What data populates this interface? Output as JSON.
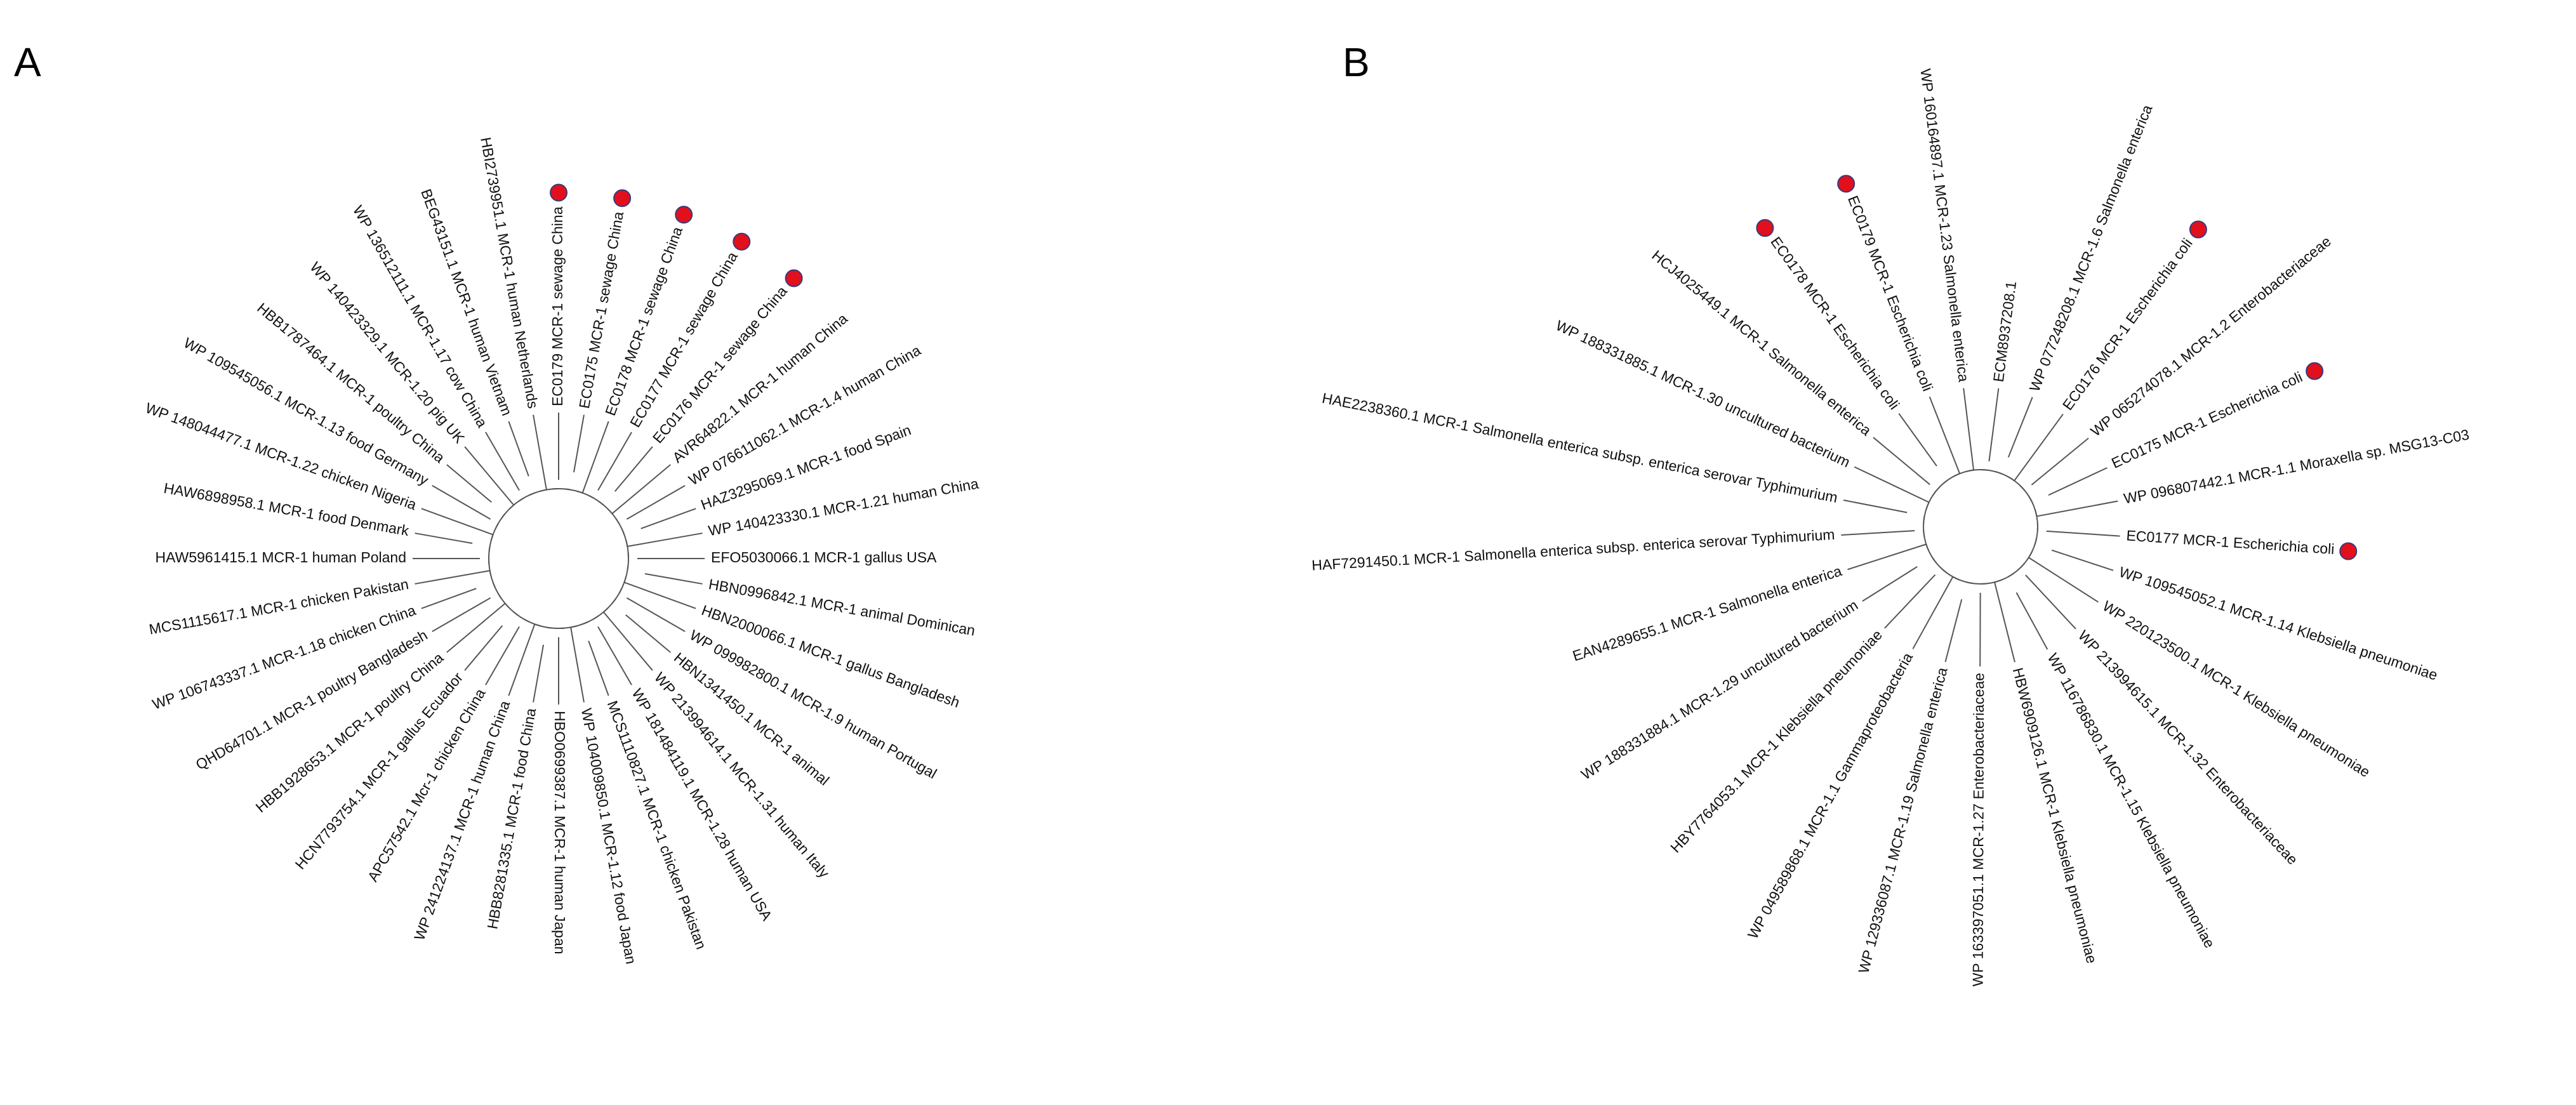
{
  "panels": [
    {
      "label": "A",
      "leaves": [
        {
          "name": "HBI2739951.1 MCR-1 human Netherlands",
          "marked": false
        },
        {
          "name": "EC0179 MCR-1 sewage China",
          "marked": true
        },
        {
          "name": "EC0175 MCR-1 sewage China",
          "marked": true
        },
        {
          "name": "EC0178 MCR-1 sewage China",
          "marked": true
        },
        {
          "name": "EC0177 MCR-1 sewage China",
          "marked": true
        },
        {
          "name": "EC0176 MCR-1 sewage China",
          "marked": true
        },
        {
          "name": "AVR64822.1 MCR-1 human China",
          "marked": false
        },
        {
          "name": "WP 076611062.1 MCR-1.4 human China",
          "marked": false
        },
        {
          "name": "HAZ3295069.1 MCR-1 food Spain",
          "marked": false
        },
        {
          "name": "WP 140423330.1 MCR-1.21 human China",
          "marked": false
        },
        {
          "name": "EFO5030066.1 MCR-1 gallus USA",
          "marked": false
        },
        {
          "name": "HBN0996842.1 MCR-1 animal Dominican",
          "marked": false
        },
        {
          "name": "HBN2000066.1 MCR-1 gallus Bangladesh",
          "marked": false
        },
        {
          "name": "WP 099982800.1 MCR-1.9 human Portugal",
          "marked": false
        },
        {
          "name": "HBN1341450.1 MCR-1 animal",
          "marked": false
        },
        {
          "name": "WP 213994614.1 MCR-1.31 human Italy",
          "marked": false
        },
        {
          "name": "WP 181484119.1 MCR-1.28 human USA",
          "marked": false
        },
        {
          "name": "MCS1110827.1 MCR-1 chicken Pakistan",
          "marked": false
        },
        {
          "name": "WP 104009850.1 MCR-1.12 food Japan",
          "marked": false
        },
        {
          "name": "HBO0699387.1 MCR-1 human Japan",
          "marked": false
        },
        {
          "name": "HBB8281335.1 MCR-1 food China",
          "marked": false
        },
        {
          "name": "WP 241224137.1 MCR-1 human China",
          "marked": false
        },
        {
          "name": "APC57542.1 Mcr-1 chicken China",
          "marked": false
        },
        {
          "name": "HCN7793754.1 MCR-1 gallus Ecuador",
          "marked": false
        },
        {
          "name": "HBB1928653.1 MCR-1 poultry China",
          "marked": false
        },
        {
          "name": "QHD64701.1 MCR-1 poultry Bangladesh",
          "marked": false
        },
        {
          "name": "WP 106743337.1 MCR-1.18 chicken China",
          "marked": false
        },
        {
          "name": "MCS1115617.1 MCR-1 chicken Pakistan",
          "marked": false
        },
        {
          "name": "HAW5961415.1 MCR-1 human Poland",
          "marked": false
        },
        {
          "name": "HAW6898958.1 MCR-1 food Denmark",
          "marked": false
        },
        {
          "name": "WP 148044477.1 MCR-1.22 chicken Nigeria",
          "marked": false
        },
        {
          "name": "WP 109545056.1 MCR-1.13 food Germany",
          "marked": false
        },
        {
          "name": "HBB1787464.1 MCR-1 poultry China",
          "marked": false
        },
        {
          "name": "WP 140423329.1 MCR-1.20 pig UK",
          "marked": false
        },
        {
          "name": "WP 136512111.1 MCR-1.17 cow China",
          "marked": false
        },
        {
          "name": "BEG43151.1 MCR-1 human Vietnam",
          "marked": false
        }
      ]
    },
    {
      "label": "B",
      "leaves": [
        {
          "name": "WP 160164897.1 MCR-1.23 Salmonella enterica",
          "marked": false
        },
        {
          "name": "ECM8937208.1",
          "marked": false
        },
        {
          "name": "WP 077248208.1 MCR-1.6 Salmonella enterica",
          "marked": false
        },
        {
          "name": "EC0176 MCR-1 Escherichia coli",
          "marked": true
        },
        {
          "name": "WP 065274078.1 MCR-1.2 Enterobacteriaceae",
          "marked": false
        },
        {
          "name": "EC0175 MCR-1 Escherichia coli",
          "marked": true
        },
        {
          "name": "WP 096807442.1 MCR-1.1 Moraxella sp. MSG13-C03",
          "marked": false
        },
        {
          "name": "EC0177 MCR-1 Escherichia coli",
          "marked": true
        },
        {
          "name": "WP 109545052.1 MCR-1.14 Klebsiella pneumoniae",
          "marked": false
        },
        {
          "name": "WP 220123500.1 MCR-1 Klebsiella pneumoniae",
          "marked": false
        },
        {
          "name": "WP 213994615.1 MCR-1.32 Enterobacteriaceae",
          "marked": false
        },
        {
          "name": "WP 116786830.1 MCR-1.15 Klebsiella pneumoniae",
          "marked": false
        },
        {
          "name": "HBW6909126.1 MCR-1 Klebsiella pneumoniae",
          "marked": false
        },
        {
          "name": "WP 163397051.1 MCR-1.27 Enterobacteriaceae",
          "marked": false
        },
        {
          "name": "WP 129336087.1 MCR-1.19 Salmonella enterica",
          "marked": false
        },
        {
          "name": "WP 049589868.1 MCR-1.1 Gammaproteobacteria",
          "marked": false
        },
        {
          "name": "HBY7764053.1 MCR-1 Klebsiella pneumoniae",
          "marked": false
        },
        {
          "name": "WP 188331884.1 MCR-1.29 uncultured bacterium",
          "marked": false
        },
        {
          "name": "EAN4289655.1 MCR-1 Salmonella enterica",
          "marked": false
        },
        {
          "name": "HAF7291450.1 MCR-1 Salmonella enterica subsp. enterica serovar Typhimurium",
          "marked": false
        },
        {
          "name": "HAE2238360.1 MCR-1 Salmonella enterica subsp. enterica serovar Typhimurium",
          "marked": false
        },
        {
          "name": "WP 188331885.1 MCR-1.30 uncultured bacterium",
          "marked": false
        },
        {
          "name": "HCJ4025449.1 MCR-1 Salmonella enterica",
          "marked": false
        },
        {
          "name": "EC0178 MCR-1 Escherichia coli",
          "marked": true
        },
        {
          "name": "EC0179 MCR-1 Escherichia coli",
          "marked": true
        }
      ]
    }
  ]
}
